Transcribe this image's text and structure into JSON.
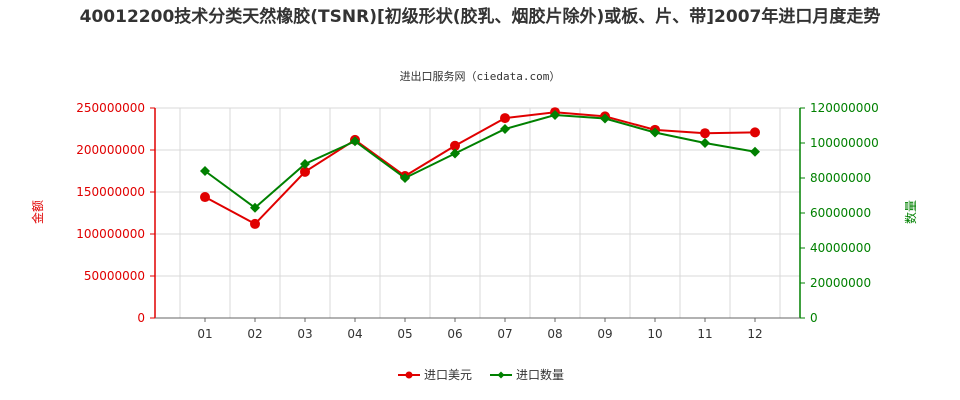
{
  "chart_data": {
    "type": "line",
    "title": "40012200技术分类天然橡胶(TSNR)[初级形状(胶乳、烟胶片除外)或板、片、带]2007年进口月度走势",
    "subtitle": "进出口服务网（ciedata.com）",
    "categories": [
      "01",
      "02",
      "03",
      "04",
      "05",
      "06",
      "07",
      "08",
      "09",
      "10",
      "11",
      "12"
    ],
    "y_left": {
      "label": "金额",
      "range": [
        0,
        250000000
      ],
      "ticks": [
        "0",
        "50000000",
        "100000000",
        "150000000",
        "200000000",
        "250000000"
      ],
      "color": "#e00000"
    },
    "y_right": {
      "label": "数量",
      "range": [
        0,
        120000000
      ],
      "ticks": [
        "0",
        "20000000",
        "40000000",
        "60000000",
        "80000000",
        "100000000",
        "120000000"
      ],
      "color": "#008000"
    },
    "series": [
      {
        "name": "进口美元",
        "axis": "left",
        "color": "#e00000",
        "values": [
          144000000,
          112000000,
          174000000,
          212000000,
          169000000,
          205000000,
          238000000,
          245000000,
          240000000,
          224000000,
          220000000,
          221000000
        ]
      },
      {
        "name": "进口数量",
        "axis": "right",
        "color": "#008000",
        "values": [
          84000000,
          63000000,
          88000000,
          101000000,
          80000000,
          94000000,
          108000000,
          116000000,
          114000000,
          106000000,
          100000000,
          95000000
        ]
      }
    ],
    "grid": true,
    "legend_position": "bottom"
  }
}
